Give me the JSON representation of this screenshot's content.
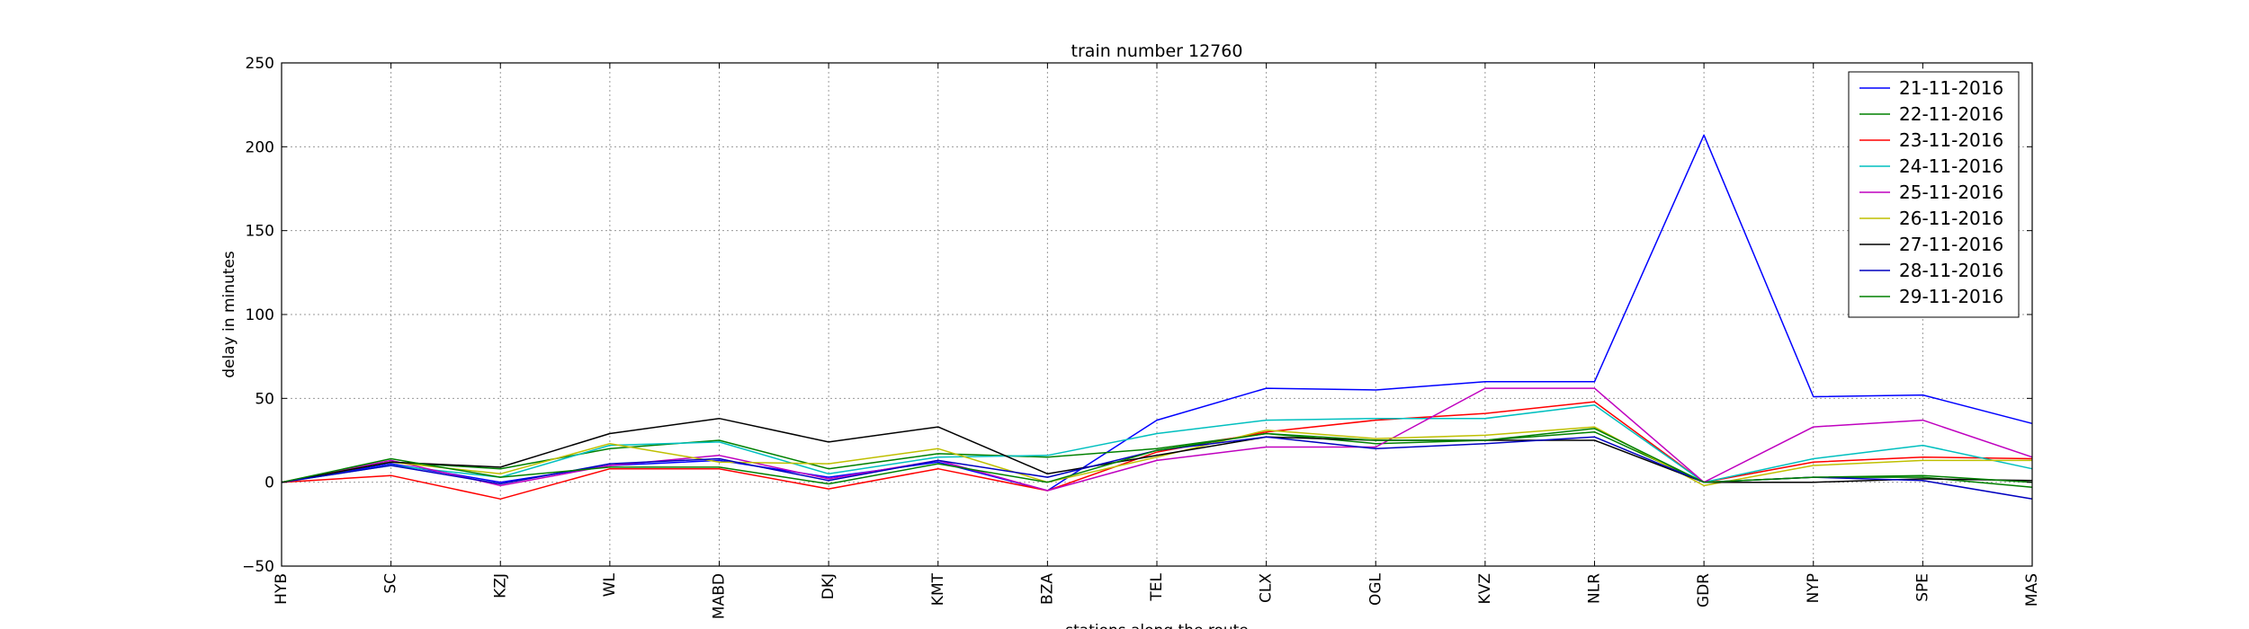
{
  "chart_data": {
    "type": "line",
    "title": "train number 12760",
    "xlabel": "stations along the route",
    "ylabel": "delay in minutes",
    "ylim": [
      -50,
      250
    ],
    "yticks": [
      -50,
      0,
      50,
      100,
      150,
      200,
      250
    ],
    "grid": true,
    "legend_position": "top-right",
    "categories": [
      "HYB",
      "SC",
      "KZJ",
      "WL",
      "MABD",
      "DKJ",
      "KMT",
      "BZA",
      "TEL",
      "CLX",
      "OGL",
      "KVZ",
      "NLR",
      "GDR",
      "NYP",
      "SPE",
      "MAS"
    ],
    "series": [
      {
        "name": "21-11-2016",
        "color": "#0000ff",
        "values": [
          0,
          11,
          0,
          10,
          13,
          3,
          12,
          -5,
          37,
          56,
          55,
          60,
          60,
          207,
          51,
          52,
          35
        ]
      },
      {
        "name": "22-11-2016",
        "color": "#008000",
        "values": [
          0,
          12,
          8,
          20,
          25,
          8,
          17,
          15,
          20,
          29,
          23,
          25,
          30,
          0,
          3,
          3,
          -3
        ]
      },
      {
        "name": "23-11-2016",
        "color": "#ff0000",
        "values": [
          0,
          4,
          -10,
          8,
          8,
          -4,
          8,
          -5,
          18,
          30,
          37,
          41,
          48,
          0,
          12,
          15,
          14
        ]
      },
      {
        "name": "24-11-2016",
        "color": "#00bfbf",
        "values": [
          0,
          10,
          3,
          22,
          24,
          5,
          15,
          16,
          29,
          37,
          38,
          38,
          46,
          0,
          14,
          22,
          8
        ]
      },
      {
        "name": "25-11-2016",
        "color": "#bf00bf",
        "values": [
          0,
          13,
          -2,
          10,
          16,
          2,
          13,
          -5,
          13,
          21,
          21,
          56,
          56,
          0,
          33,
          37,
          15
        ]
      },
      {
        "name": "26-11-2016",
        "color": "#bfbf00",
        "values": [
          0,
          12,
          5,
          23,
          12,
          11,
          20,
          0,
          15,
          31,
          26,
          28,
          33,
          -2,
          10,
          13,
          13
        ]
      },
      {
        "name": "27-11-2016",
        "color": "#000000",
        "values": [
          0,
          12,
          9,
          29,
          38,
          24,
          33,
          5,
          16,
          27,
          25,
          25,
          25,
          0,
          0,
          2,
          1
        ]
      },
      {
        "name": "28-11-2016",
        "color": "#0000bf",
        "values": [
          0,
          10,
          -1,
          11,
          14,
          1,
          13,
          3,
          19,
          27,
          20,
          23,
          27,
          0,
          3,
          1,
          -10
        ]
      },
      {
        "name": "29-11-2016",
        "color": "#008000",
        "values": [
          0,
          14,
          3,
          9,
          9,
          -1,
          11,
          0,
          19,
          29,
          25,
          25,
          32,
          0,
          3,
          4,
          0
        ]
      }
    ]
  }
}
